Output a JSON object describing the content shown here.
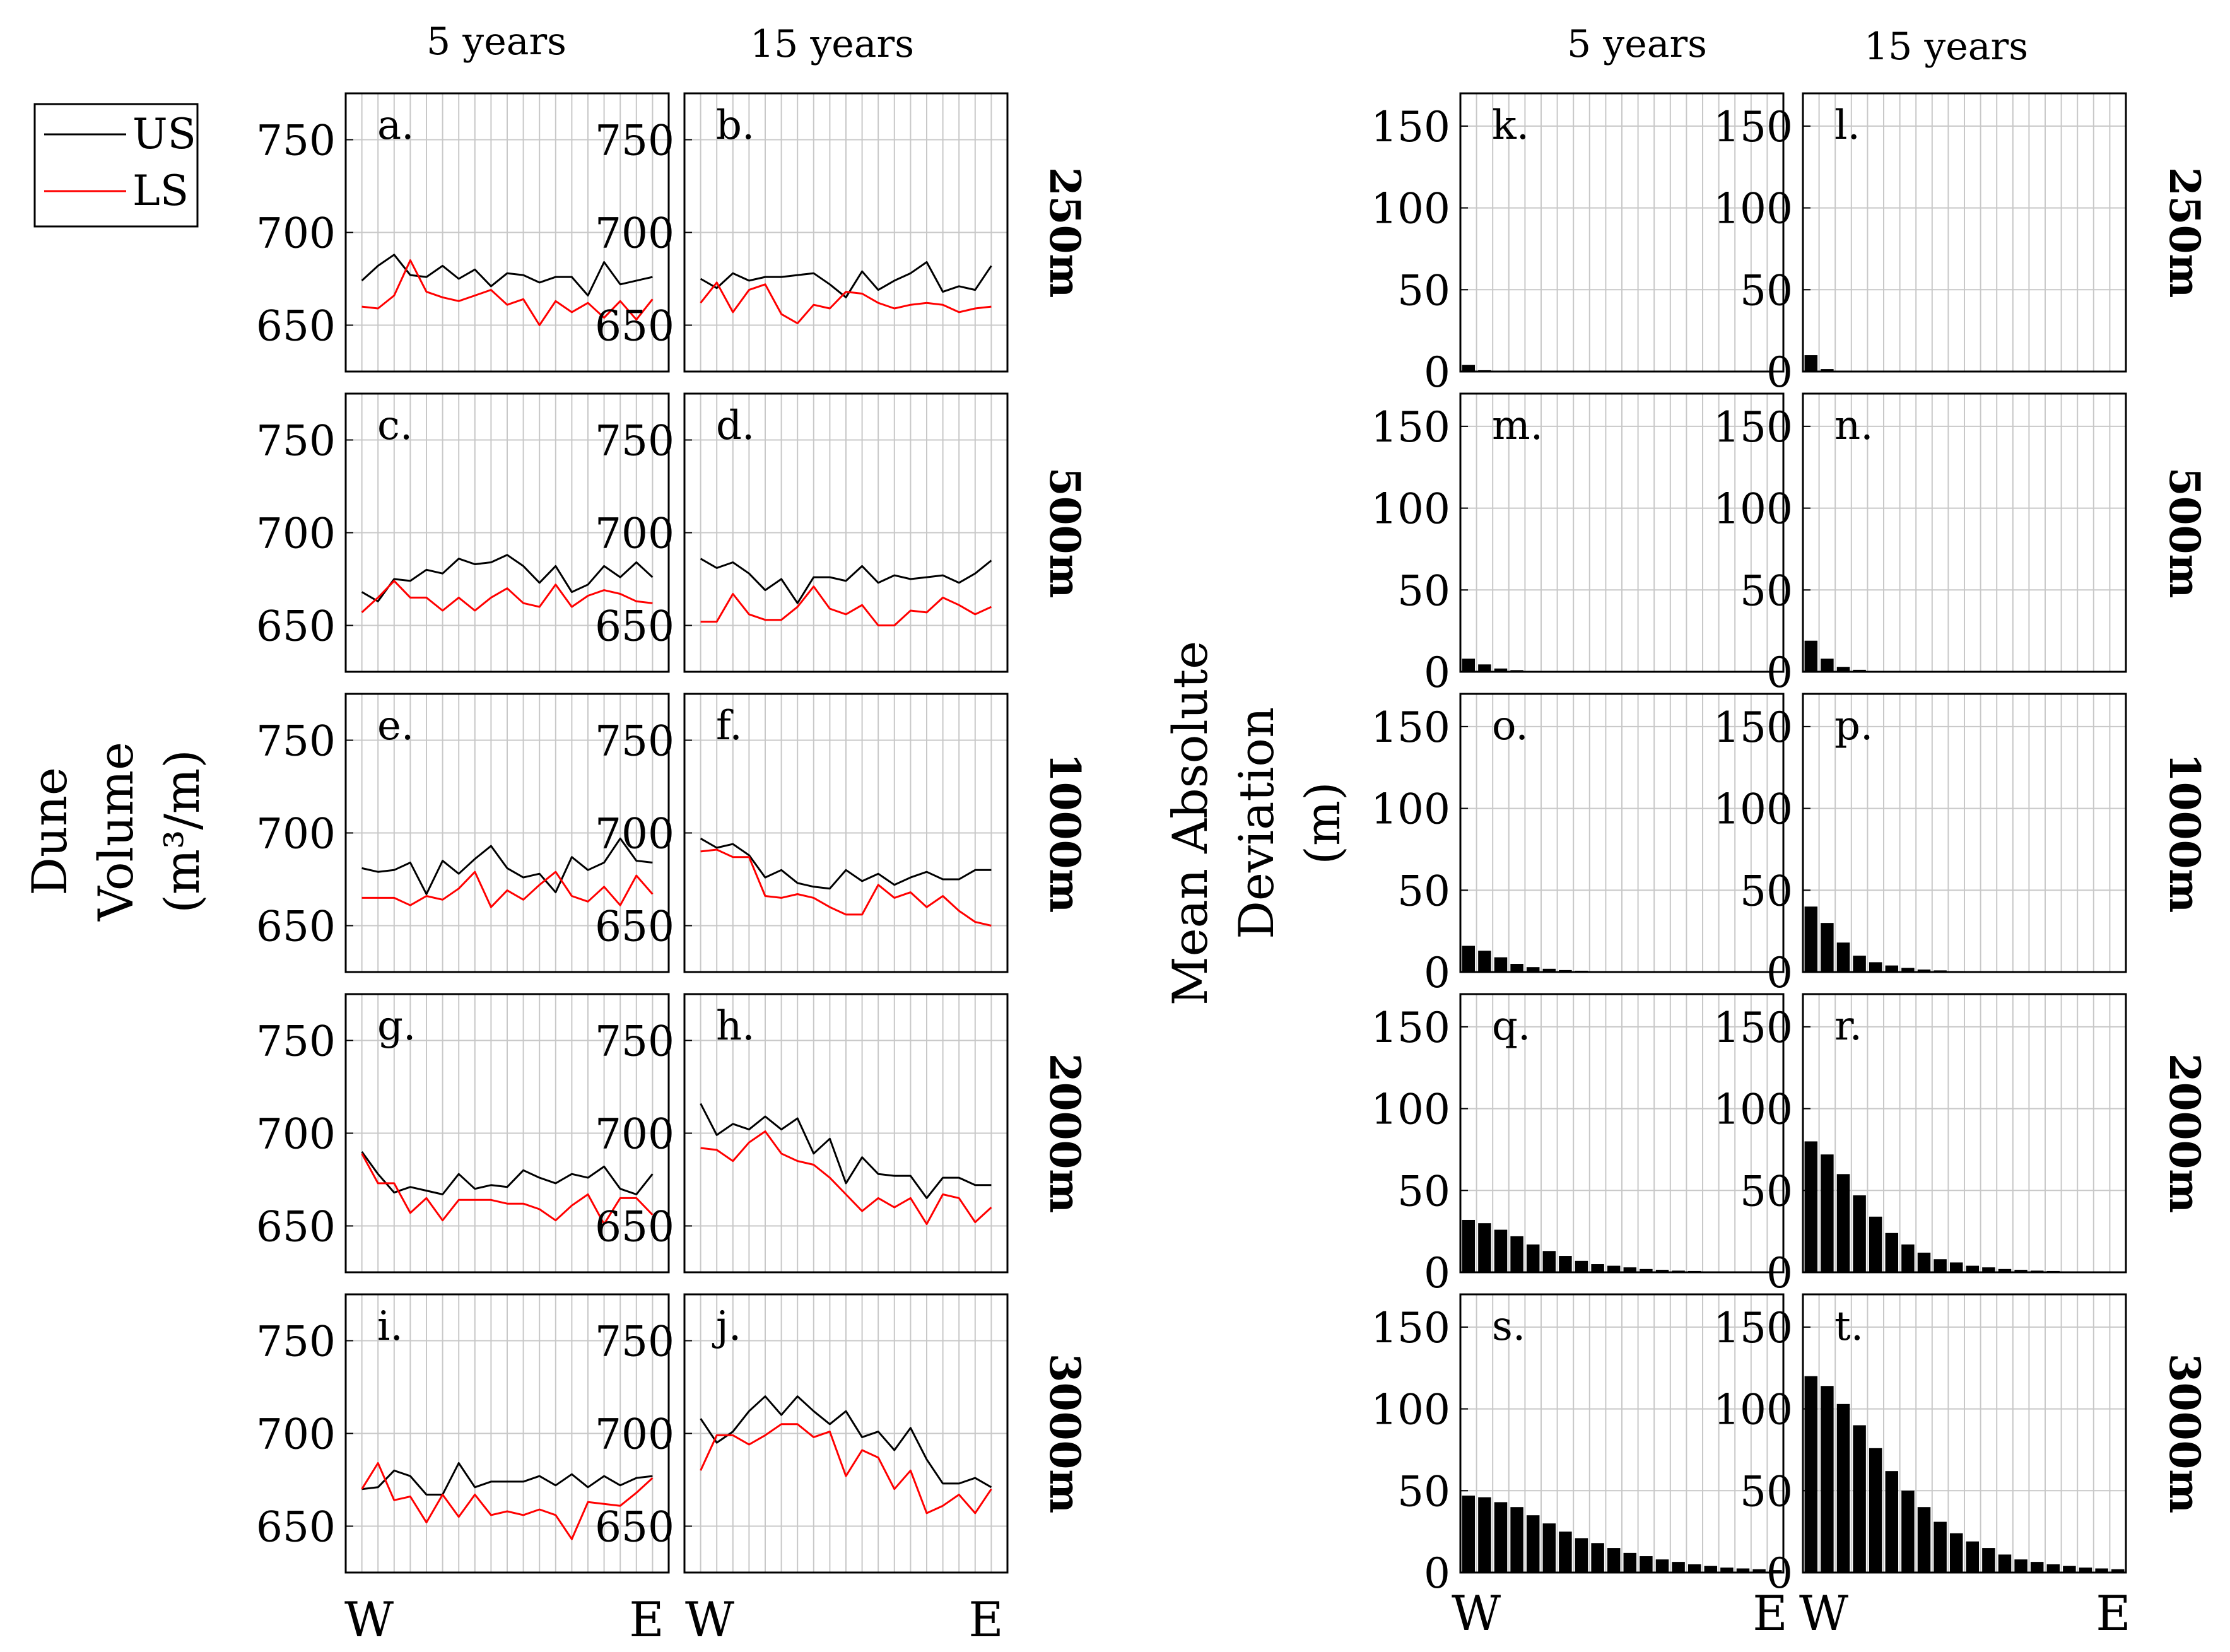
{
  "figure": {
    "col_headers": [
      "5 years",
      "15 years"
    ],
    "row_labels": [
      "250m",
      "500m",
      "1000m",
      "2000m",
      "3000m"
    ],
    "legend": [
      {
        "name": "US",
        "color": "#000000"
      },
      {
        "name": "LS",
        "color": "#ff0000"
      }
    ],
    "left_ylabel": [
      "Dune",
      "Volume",
      "(m³/m)"
    ],
    "right_ylabel": [
      "Mean Absolute",
      "Deviation",
      "(m)"
    ],
    "xtick_labels": [
      "W",
      "E"
    ]
  },
  "chart_data": [
    {
      "type": "line",
      "title": "Dune Volume (m³/m)",
      "ylim": [
        625,
        775
      ],
      "yticks": [
        650,
        700,
        750
      ],
      "x": [
        1,
        2,
        3,
        4,
        5,
        6,
        7,
        8,
        9,
        10,
        11,
        12,
        13,
        14,
        15,
        16,
        17,
        18,
        19
      ],
      "panels": [
        {
          "label": "a.",
          "column": "5 years",
          "row": "250m",
          "series": [
            {
              "name": "US",
              "values": [
                674,
                682,
                688,
                677,
                676,
                682,
                675,
                680,
                671,
                678,
                677,
                673,
                676,
                676,
                666,
                684,
                672,
                674,
                676
              ]
            },
            {
              "name": "LS",
              "values": [
                660,
                659,
                666,
                685,
                668,
                665,
                663,
                666,
                669,
                661,
                664,
                650,
                663,
                657,
                662,
                654,
                663,
                653,
                664
              ]
            }
          ]
        },
        {
          "label": "b.",
          "column": "15 years",
          "row": "250m",
          "series": [
            {
              "name": "US",
              "values": [
                675,
                670,
                678,
                674,
                676,
                676,
                677,
                678,
                672,
                665,
                679,
                669,
                674,
                678,
                684,
                668,
                671,
                669,
                682
              ]
            },
            {
              "name": "LS",
              "values": [
                662,
                673,
                657,
                669,
                672,
                656,
                651,
                661,
                659,
                668,
                667,
                662,
                659,
                661,
                662,
                661,
                657,
                659,
                660
              ]
            }
          ]
        },
        {
          "label": "c.",
          "column": "5 years",
          "row": "500m",
          "series": [
            {
              "name": "US",
              "values": [
                668,
                663,
                675,
                674,
                680,
                678,
                686,
                683,
                684,
                688,
                682,
                673,
                682,
                668,
                672,
                682,
                676,
                684,
                676
              ]
            },
            {
              "name": "LS",
              "values": [
                657,
                665,
                674,
                665,
                665,
                658,
                665,
                658,
                665,
                670,
                662,
                660,
                672,
                660,
                666,
                669,
                667,
                663,
                662
              ]
            }
          ]
        },
        {
          "label": "d.",
          "column": "15 years",
          "row": "500m",
          "series": [
            {
              "name": "US",
              "values": [
                686,
                681,
                684,
                678,
                669,
                675,
                662,
                676,
                676,
                674,
                682,
                673,
                677,
                675,
                676,
                677,
                673,
                678,
                685
              ]
            },
            {
              "name": "LS",
              "values": [
                652,
                652,
                667,
                656,
                653,
                653,
                660,
                671,
                659,
                656,
                661,
                650,
                650,
                658,
                657,
                665,
                661,
                656,
                660
              ]
            }
          ]
        },
        {
          "label": "e.",
          "column": "5 years",
          "row": "1000m",
          "series": [
            {
              "name": "US",
              "values": [
                681,
                679,
                680,
                684,
                667,
                685,
                678,
                686,
                693,
                681,
                676,
                678,
                668,
                687,
                680,
                684,
                697,
                685,
                684
              ]
            },
            {
              "name": "LS",
              "values": [
                665,
                665,
                665,
                661,
                666,
                664,
                670,
                679,
                660,
                669,
                664,
                672,
                679,
                666,
                663,
                671,
                661,
                677,
                667
              ]
            }
          ]
        },
        {
          "label": "f.",
          "column": "15 years",
          "row": "1000m",
          "series": [
            {
              "name": "US",
              "values": [
                697,
                692,
                694,
                688,
                676,
                680,
                673,
                671,
                670,
                680,
                674,
                678,
                672,
                676,
                679,
                675,
                675,
                680,
                680
              ]
            },
            {
              "name": "LS",
              "values": [
                690,
                691,
                687,
                687,
                666,
                665,
                667,
                665,
                660,
                656,
                656,
                672,
                665,
                668,
                660,
                666,
                658,
                652,
                650
              ]
            }
          ]
        },
        {
          "label": "g.",
          "column": "5 years",
          "row": "2000m",
          "series": [
            {
              "name": "US",
              "values": [
                690,
                678,
                668,
                671,
                669,
                667,
                678,
                670,
                672,
                671,
                680,
                676,
                673,
                678,
                676,
                682,
                670,
                667,
                678
              ]
            },
            {
              "name": "LS",
              "values": [
                689,
                673,
                673,
                657,
                665,
                653,
                664,
                664,
                664,
                662,
                662,
                659,
                653,
                661,
                667,
                651,
                665,
                665,
                656
              ]
            }
          ]
        },
        {
          "label": "h.",
          "column": "15 years",
          "row": "2000m",
          "series": [
            {
              "name": "US",
              "values": [
                716,
                699,
                705,
                702,
                709,
                702,
                708,
                689,
                697,
                673,
                687,
                678,
                677,
                677,
                665,
                676,
                676,
                672,
                672
              ]
            },
            {
              "name": "LS",
              "values": [
                692,
                691,
                685,
                695,
                701,
                689,
                685,
                683,
                676,
                667,
                658,
                665,
                660,
                665,
                651,
                667,
                665,
                652,
                660
              ]
            }
          ]
        },
        {
          "label": "i.",
          "column": "5 years",
          "row": "3000m",
          "series": [
            {
              "name": "US",
              "values": [
                670,
                671,
                680,
                677,
                667,
                667,
                684,
                671,
                674,
                674,
                674,
                677,
                672,
                678,
                671,
                677,
                672,
                676,
                677
              ]
            },
            {
              "name": "LS",
              "values": [
                670,
                684,
                664,
                666,
                652,
                667,
                655,
                667,
                656,
                658,
                656,
                659,
                656,
                643,
                663,
                662,
                661,
                668,
                676
              ]
            }
          ]
        },
        {
          "label": "j.",
          "column": "15 years",
          "row": "3000m",
          "series": [
            {
              "name": "US",
              "values": [
                708,
                695,
                701,
                712,
                720,
                710,
                720,
                712,
                705,
                712,
                698,
                701,
                691,
                703,
                686,
                673,
                673,
                676,
                671
              ]
            },
            {
              "name": "LS",
              "values": [
                680,
                699,
                699,
                694,
                699,
                705,
                705,
                698,
                701,
                677,
                691,
                687,
                670,
                680,
                657,
                661,
                667,
                657,
                670
              ]
            }
          ]
        }
      ]
    },
    {
      "type": "bar",
      "title": "Mean Absolute Deviation (m)",
      "ylim": [
        0,
        170
      ],
      "yticks": [
        0,
        50,
        100,
        150
      ],
      "categories": [
        1,
        2,
        3,
        4,
        5,
        6,
        7,
        8,
        9,
        10,
        11,
        12,
        13,
        14,
        15,
        16,
        17,
        18,
        19,
        20
      ],
      "panels": [
        {
          "label": "k.",
          "column": "5 years",
          "row": "250m",
          "values": [
            4,
            0.8,
            0.2,
            0.1,
            0,
            0,
            0,
            0,
            0,
            0,
            0,
            0,
            0,
            0,
            0,
            0,
            0,
            0,
            0,
            0
          ]
        },
        {
          "label": "l.",
          "column": "15 years",
          "row": "250m",
          "values": [
            10,
            1.5,
            0.4,
            0.1,
            0,
            0,
            0,
            0,
            0,
            0,
            0,
            0,
            0,
            0,
            0,
            0,
            0,
            0,
            0,
            0
          ]
        },
        {
          "label": "m.",
          "column": "5 years",
          "row": "500m",
          "values": [
            8,
            4.5,
            2,
            1,
            0.5,
            0.2,
            0.1,
            0,
            0,
            0,
            0,
            0,
            0,
            0,
            0,
            0,
            0,
            0,
            0,
            0
          ]
        },
        {
          "label": "n.",
          "column": "15 years",
          "row": "500m",
          "values": [
            19,
            8,
            3,
            1.2,
            0.5,
            0.2,
            0.1,
            0,
            0,
            0,
            0,
            0,
            0,
            0,
            0,
            0,
            0,
            0,
            0,
            0
          ]
        },
        {
          "label": "o.",
          "column": "5 years",
          "row": "1000m",
          "values": [
            16,
            13,
            9,
            5,
            3,
            2,
            1.2,
            0.8,
            0.5,
            0.3,
            0.2,
            0.1,
            0.1,
            0,
            0,
            0,
            0,
            0,
            0,
            0
          ]
        },
        {
          "label": "p.",
          "column": "15 years",
          "row": "1000m",
          "values": [
            40,
            30,
            18,
            10,
            6,
            4,
            2.5,
            1.5,
            1,
            0.6,
            0.4,
            0.2,
            0.1,
            0.1,
            0,
            0,
            0,
            0,
            0,
            0
          ]
        },
        {
          "label": "q.",
          "column": "5 years",
          "row": "2000m",
          "values": [
            32,
            30,
            26,
            22,
            17,
            13,
            10,
            7,
            5,
            4,
            3,
            2,
            1.5,
            1,
            0.8,
            0.5,
            0.4,
            0.3,
            0.2,
            0.1
          ]
        },
        {
          "label": "r.",
          "column": "15 years",
          "row": "2000m",
          "values": [
            80,
            72,
            60,
            47,
            34,
            24,
            17,
            12,
            8,
            6,
            4,
            3,
            2,
            1.5,
            1,
            0.8,
            0.5,
            0.4,
            0.3,
            0.2
          ]
        },
        {
          "label": "s.",
          "column": "5 years",
          "row": "3000m",
          "values": [
            47,
            46,
            43,
            40,
            35,
            30,
            25,
            21,
            18,
            15,
            12,
            10,
            8,
            6.5,
            5,
            4,
            3,
            2.5,
            2,
            1.5
          ]
        },
        {
          "label": "t.",
          "column": "15 years",
          "row": "3000m",
          "values": [
            120,
            114,
            103,
            90,
            76,
            62,
            50,
            40,
            31,
            24,
            19,
            15,
            11,
            8,
            6.5,
            5,
            4,
            3,
            2.5,
            2
          ]
        }
      ]
    }
  ]
}
